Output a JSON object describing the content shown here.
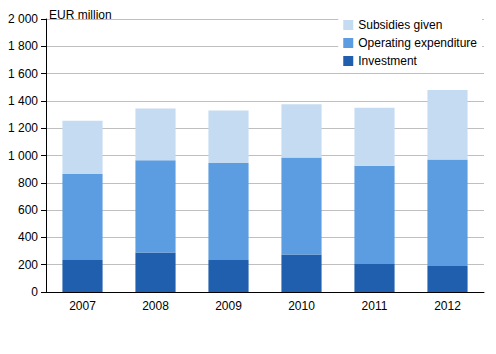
{
  "chart_data": {
    "type": "bar",
    "stacked": true,
    "ylabel": "EUR million",
    "categories": [
      "2007",
      "2008",
      "2009",
      "2010",
      "2011",
      "2012"
    ],
    "series": [
      {
        "name": "Investment",
        "color": "#1f5fae",
        "values": [
          235,
          290,
          235,
          275,
          205,
          190
        ]
      },
      {
        "name": "Operating expenditure",
        "color": "#5b9de0",
        "values": [
          630,
          675,
          710,
          710,
          720,
          780
        ]
      },
      {
        "name": "Subsidies given",
        "color": "#c5dbf2",
        "values": [
          390,
          380,
          385,
          390,
          425,
          510
        ]
      }
    ],
    "ylim": [
      0,
      2000
    ],
    "yticks": [
      0,
      200,
      400,
      600,
      800,
      {
        "value": 1000,
        "label": "1 000"
      },
      {
        "value": 1200,
        "label": "1 200"
      },
      {
        "value": 1400,
        "label": "1 400"
      },
      {
        "value": 1600,
        "label": "1 600"
      },
      {
        "value": 1800,
        "label": "1 800"
      },
      {
        "value": 2000,
        "label": "2 000"
      }
    ],
    "grid": true,
    "legend": "top-right"
  }
}
